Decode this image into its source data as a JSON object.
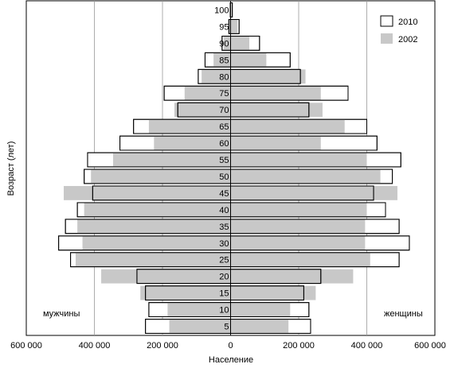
{
  "chart_data": {
    "type": "bar",
    "orientation": "horizontal",
    "categories": [
      "5",
      "10",
      "15",
      "20",
      "25",
      "30",
      "35",
      "40",
      "45",
      "50",
      "55",
      "60",
      "65",
      "70",
      "75",
      "80",
      "85",
      "90",
      "95",
      "100"
    ],
    "series": [
      {
        "name": "2010",
        "style": "outline",
        "men": [
          250000,
          240000,
          250000,
          275000,
          470000,
          505000,
          485000,
          450000,
          405000,
          430000,
          420000,
          325000,
          285000,
          155000,
          195000,
          95000,
          75000,
          25000,
          5000,
          1000
        ],
        "women": [
          235000,
          230000,
          215000,
          265000,
          495000,
          525000,
          495000,
          455000,
          420000,
          475000,
          500000,
          430000,
          400000,
          230000,
          345000,
          205000,
          175000,
          85000,
          25000,
          5000
        ]
      },
      {
        "name": "2002",
        "style": "fill",
        "men": [
          180000,
          185000,
          265000,
          380000,
          455000,
          435000,
          450000,
          430000,
          490000,
          410000,
          345000,
          225000,
          240000,
          165000,
          135000,
          85000,
          50000,
          20000,
          5000,
          500
        ],
        "women": [
          170000,
          175000,
          250000,
          360000,
          410000,
          395000,
          395000,
          400000,
          490000,
          440000,
          400000,
          265000,
          335000,
          270000,
          265000,
          220000,
          105000,
          55000,
          20000,
          2000
        ]
      }
    ],
    "xlabel": "Население",
    "ylabel": "Возраст (лет)",
    "xlim": [
      -600000,
      600000
    ],
    "xticks": [
      -600000,
      -400000,
      -200000,
      0,
      200000,
      400000,
      600000
    ],
    "xtick_labels": [
      "600 000",
      "400 000",
      "200 000",
      "0",
      "200 000",
      "400 000",
      "600 000"
    ],
    "side_labels": {
      "left": "мужчины",
      "right": "женщины"
    },
    "legend_position": "top-right",
    "grid": true,
    "colors": {
      "outline_fill": "#ffffff",
      "outline_stroke": "#000000",
      "fill": "#c8c8c8",
      "grid": "#999999"
    }
  }
}
